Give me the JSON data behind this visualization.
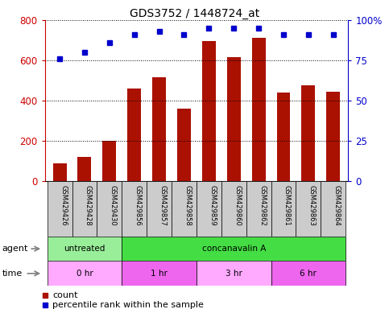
{
  "title": "GDS3752 / 1448724_at",
  "samples": [
    "GSM429426",
    "GSM429428",
    "GSM429430",
    "GSM429856",
    "GSM429857",
    "GSM429858",
    "GSM429859",
    "GSM429860",
    "GSM429862",
    "GSM429861",
    "GSM429863",
    "GSM429864"
  ],
  "bar_values": [
    85,
    120,
    200,
    460,
    515,
    360,
    695,
    615,
    710,
    440,
    475,
    445
  ],
  "dot_values": [
    76,
    80,
    86,
    91,
    93,
    91,
    95,
    95,
    95,
    91,
    91,
    91
  ],
  "bar_color": "#aa1100",
  "dot_color": "#0000cc",
  "ylim_left": [
    0,
    800
  ],
  "ylim_right": [
    0,
    100
  ],
  "yticks_left": [
    0,
    200,
    400,
    600,
    800
  ],
  "yticks_right": [
    0,
    25,
    50,
    75,
    100
  ],
  "agent_row": [
    {
      "label": "untreated",
      "start": 0,
      "end": 3,
      "color": "#99ee99"
    },
    {
      "label": "concanavalin A",
      "start": 3,
      "end": 12,
      "color": "#44dd44"
    }
  ],
  "time_row": [
    {
      "label": "0 hr",
      "start": 0,
      "end": 3,
      "color": "#ffaaff"
    },
    {
      "label": "1 hr",
      "start": 3,
      "end": 6,
      "color": "#ee66ee"
    },
    {
      "label": "3 hr",
      "start": 6,
      "end": 9,
      "color": "#ffaaff"
    },
    {
      "label": "6 hr",
      "start": 9,
      "end": 12,
      "color": "#ee66ee"
    }
  ],
  "label_color_left": "#cc0000",
  "label_color_right": "#0000cc",
  "tick_label_area_color": "#cccccc",
  "bar_width": 0.55
}
